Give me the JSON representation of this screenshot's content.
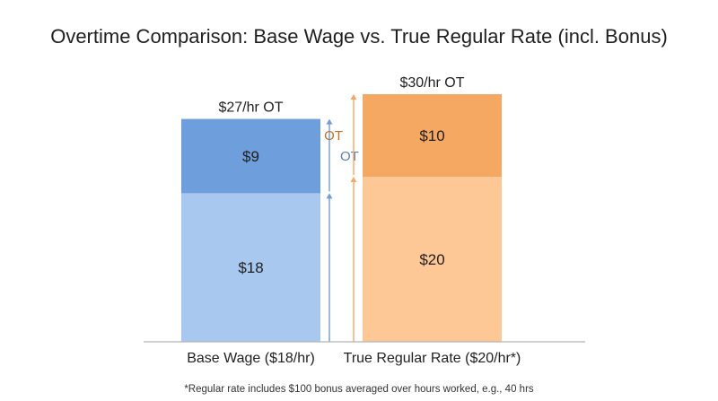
{
  "chart_data": {
    "type": "bar",
    "stacked": true,
    "title": "Overtime Comparison: Base Wage vs. True Regular Rate (incl. Bonus)",
    "footnote": "*Regular rate includes $100 bonus averaged over hours worked, e.g., 40 hrs",
    "categories": [
      "Base Wage ($18/hr)",
      "True Regular Rate ($20/hr*)"
    ],
    "bars": [
      {
        "category": "Base Wage ($18/hr)",
        "total_label": "$27/hr OT",
        "ot_label": "OT",
        "segments": [
          {
            "value": 18,
            "label": "$18",
            "color": "#a9c8f0"
          },
          {
            "value": 9,
            "label": "$9",
            "color": "#6f9edc"
          }
        ],
        "accent_color": "#6f9edc",
        "ot_side": "right"
      },
      {
        "category": "True Regular Rate ($20/hr*)",
        "total_label": "$30/hr OT",
        "ot_label": "OT",
        "segments": [
          {
            "value": 20,
            "label": "$20",
            "color": "#fdc796"
          },
          {
            "value": 10,
            "label": "$10",
            "color": "#f5a862"
          }
        ],
        "accent_color": "#f5a862",
        "ot_side": "left"
      }
    ],
    "ylim": [
      0,
      30
    ],
    "grid": false,
    "legend": "none",
    "colors": {
      "ot_text_base": "#5b7fb3",
      "ot_text_true": "#c0722c",
      "axis": "#b5b5b5"
    }
  }
}
